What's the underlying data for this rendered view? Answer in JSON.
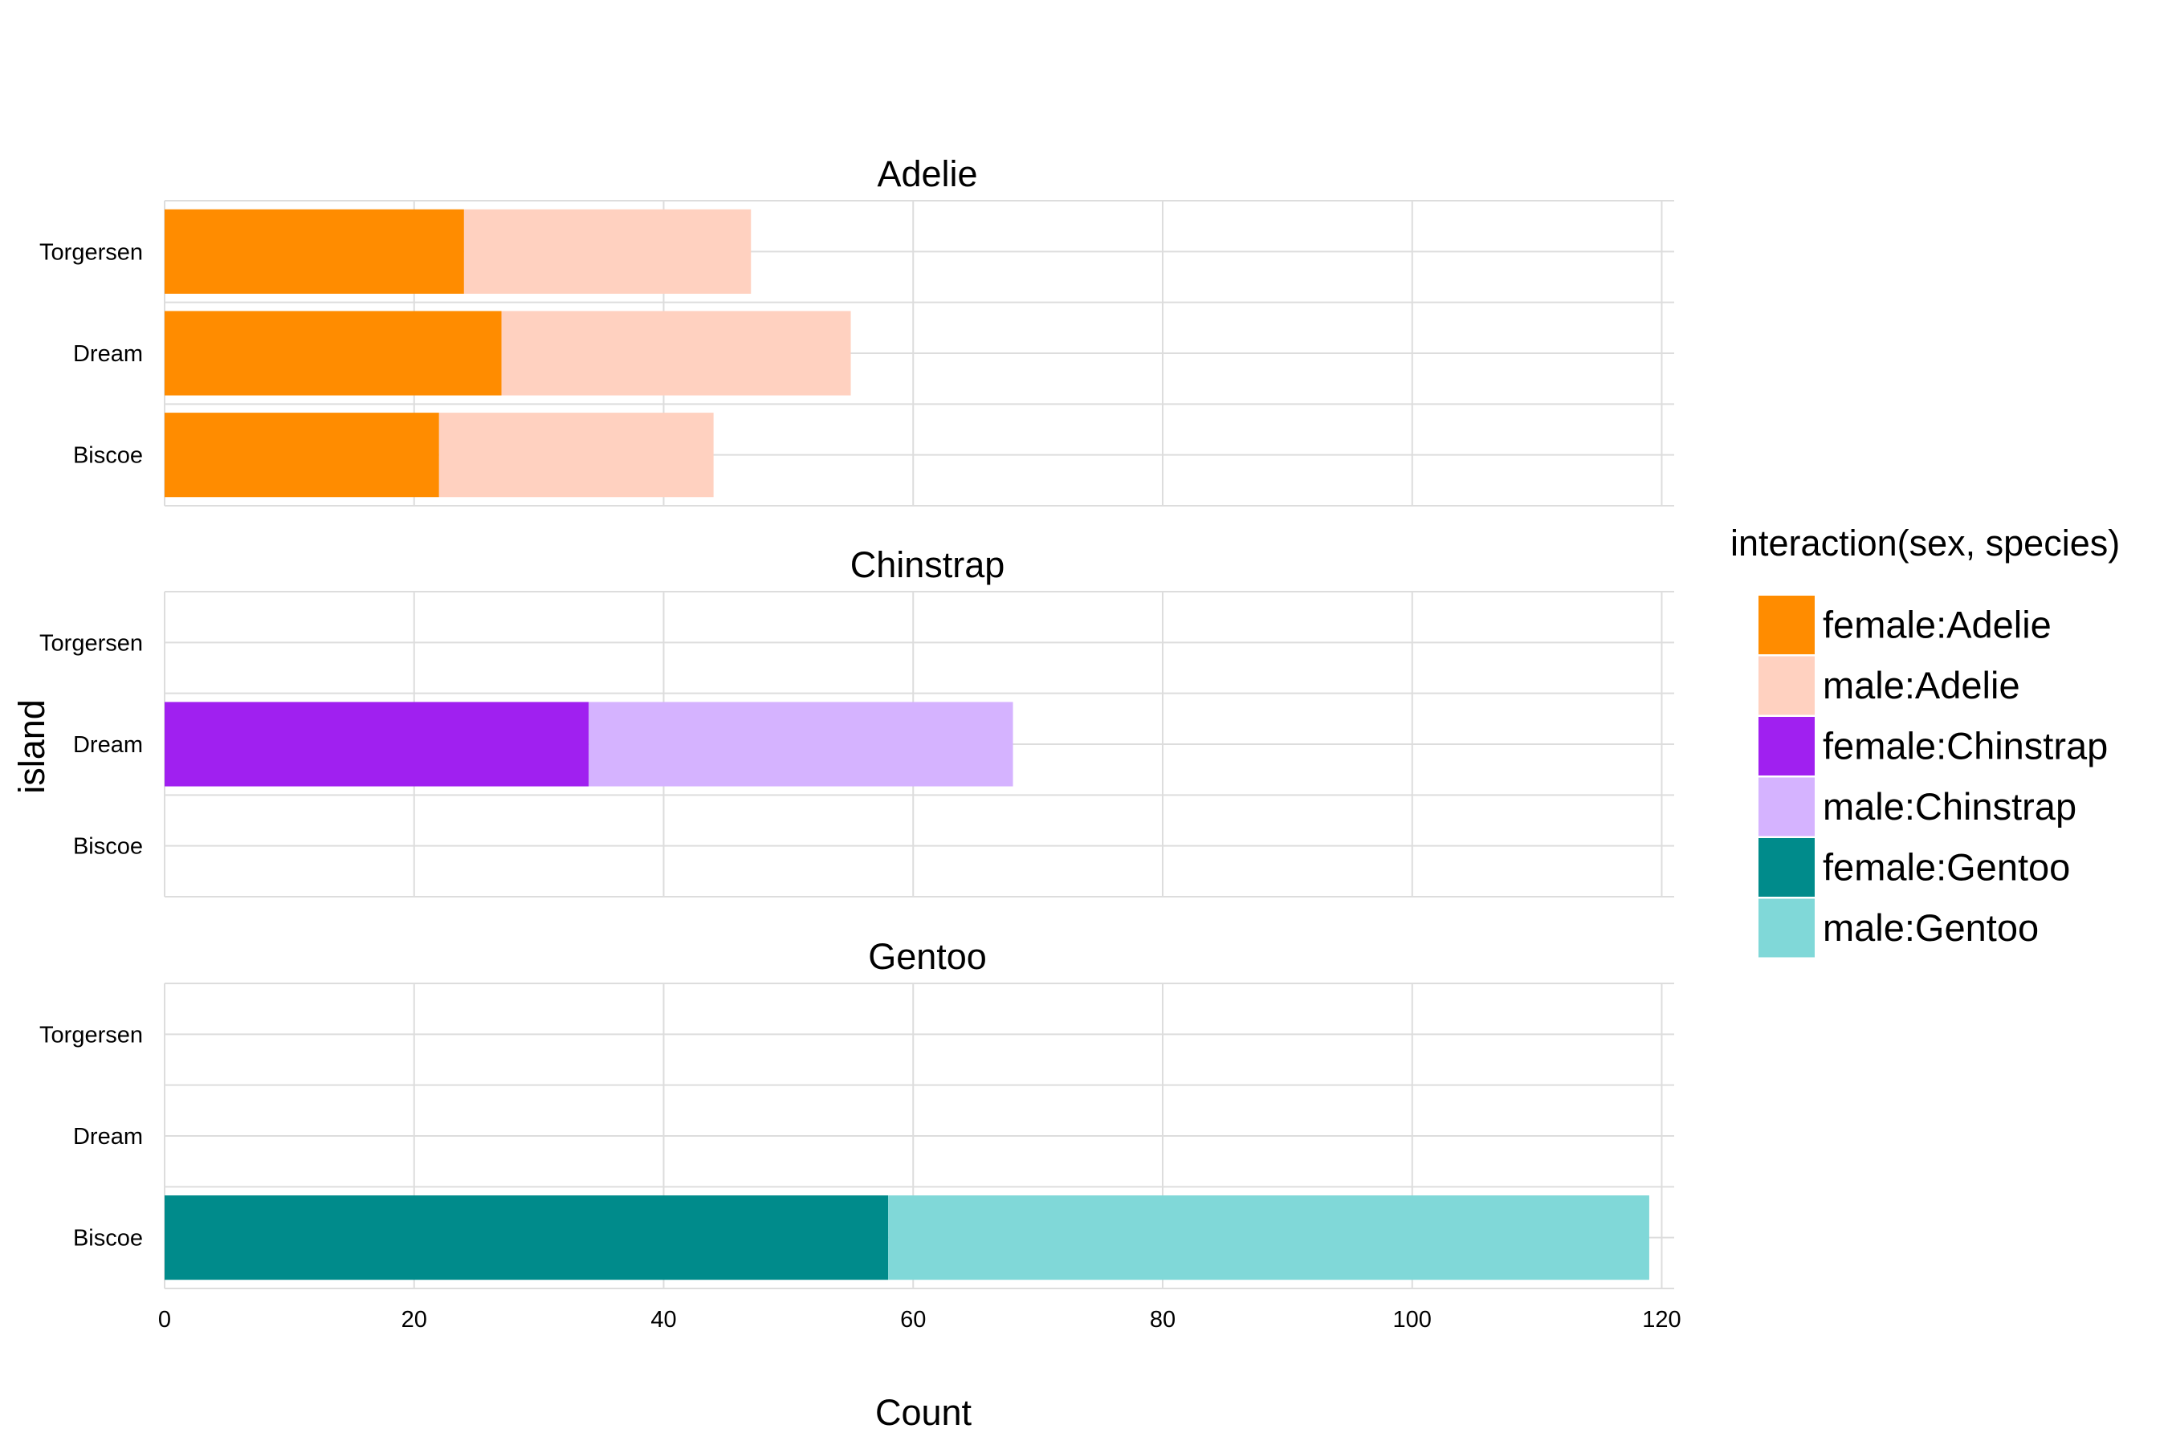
{
  "chart_data": {
    "type": "bar",
    "orientation": "horizontal",
    "stacked": true,
    "facet_variable": "species",
    "facets": [
      "Adelie",
      "Chinstrap",
      "Gentoo"
    ],
    "categories": [
      "Torgersen",
      "Dream",
      "Biscoe"
    ],
    "xlabel": "Count",
    "ylabel": "island",
    "xlim": [
      0,
      121
    ],
    "x_ticks": [
      "0",
      "20",
      "40",
      "60",
      "80",
      "100",
      "120"
    ],
    "grid": true,
    "legend": {
      "title": "interaction(sex, species)",
      "position": "right",
      "entries": [
        {
          "label": "female:Adelie",
          "color": "#FF8C00"
        },
        {
          "label": "male:Adelie",
          "color": "#FFD1C0"
        },
        {
          "label": "female:Chinstrap",
          "color": "#A020F0"
        },
        {
          "label": "male:Chinstrap",
          "color": "#D5B3FF"
        },
        {
          "label": "female:Gentoo",
          "color": "#008B8B"
        },
        {
          "label": "male:Gentoo",
          "color": "#80D8D8"
        }
      ]
    },
    "series": [
      {
        "name": "female:Adelie",
        "facet": "Adelie",
        "values": {
          "Torgersen": 24,
          "Dream": 27,
          "Biscoe": 22
        }
      },
      {
        "name": "male:Adelie",
        "facet": "Adelie",
        "values": {
          "Torgersen": 23,
          "Dream": 28,
          "Biscoe": 22
        }
      },
      {
        "name": "female:Chinstrap",
        "facet": "Chinstrap",
        "values": {
          "Torgersen": 0,
          "Dream": 34,
          "Biscoe": 0
        }
      },
      {
        "name": "male:Chinstrap",
        "facet": "Chinstrap",
        "values": {
          "Torgersen": 0,
          "Dream": 34,
          "Biscoe": 0
        }
      },
      {
        "name": "female:Gentoo",
        "facet": "Gentoo",
        "values": {
          "Torgersen": 0,
          "Dream": 0,
          "Biscoe": 58
        }
      },
      {
        "name": "male:Gentoo",
        "facet": "Gentoo",
        "values": {
          "Torgersen": 0,
          "Dream": 0,
          "Biscoe": 61
        }
      }
    ]
  }
}
